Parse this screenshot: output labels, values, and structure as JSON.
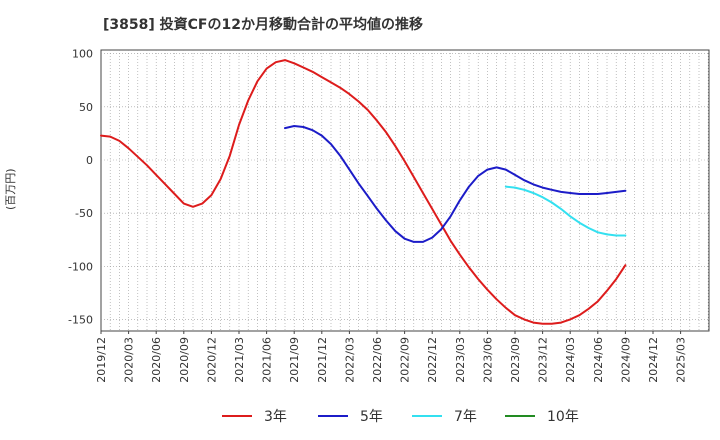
{
  "chart_data": {
    "type": "line",
    "title": "[3858]  投資CFの12か月移動合計の平均値の推移",
    "ylabel": "(百万円)",
    "xlabel": "",
    "ylim": [
      -160,
      100
    ],
    "yticks": [
      100,
      50,
      0,
      -50,
      -100,
      -150
    ],
    "xticks": [
      "2019/12",
      "2020/03",
      "2020/06",
      "2020/09",
      "2020/12",
      "2021/03",
      "2021/06",
      "2021/09",
      "2021/12",
      "2022/03",
      "2022/06",
      "2022/09",
      "2022/12",
      "2023/03",
      "2023/06",
      "2023/09",
      "2023/12",
      "2024/03",
      "2024/06",
      "2024/09",
      "2024/12",
      "2025/03"
    ],
    "grid": true,
    "legend_position": "bottom",
    "series": [
      {
        "name": "3年",
        "color": "#dd1c1c",
        "x": [
          "2019/12",
          "2020/01",
          "2020/02",
          "2020/03",
          "2020/04",
          "2020/05",
          "2020/06",
          "2020/07",
          "2020/08",
          "2020/09",
          "2020/10",
          "2020/11",
          "2020/12",
          "2021/01",
          "2021/02",
          "2021/03",
          "2021/04",
          "2021/05",
          "2021/06",
          "2021/07",
          "2021/08",
          "2021/09",
          "2021/10",
          "2021/11",
          "2021/12",
          "2022/01",
          "2022/02",
          "2022/03",
          "2022/04",
          "2022/05",
          "2022/06",
          "2022/07",
          "2022/08",
          "2022/09",
          "2022/10",
          "2022/11",
          "2022/12",
          "2023/01",
          "2023/02",
          "2023/03",
          "2023/04",
          "2023/05",
          "2023/06",
          "2023/07",
          "2023/08",
          "2023/09",
          "2023/10",
          "2023/11",
          "2023/12",
          "2024/01",
          "2024/02",
          "2024/03",
          "2024/04",
          "2024/05",
          "2024/06",
          "2024/07",
          "2024/08",
          "2024/09"
        ],
        "values": [
          23,
          22,
          18,
          11,
          3,
          -5,
          -14,
          -23,
          -32,
          -41,
          -44,
          -41,
          -33,
          -18,
          4,
          33,
          56,
          74,
          86,
          92,
          94,
          91,
          87,
          83,
          78,
          73,
          68,
          62,
          55,
          47,
          37,
          26,
          13,
          -1,
          -16,
          -31,
          -46,
          -61,
          -76,
          -89,
          -101,
          -112,
          -122,
          -131,
          -139,
          -146,
          -150,
          -153,
          -154,
          -154,
          -153,
          -150,
          -146,
          -140,
          -133,
          -123,
          -112,
          -99
        ]
      },
      {
        "name": "5年",
        "color": "#1c1cc8",
        "x": [
          "2021/08",
          "2021/09",
          "2021/10",
          "2021/11",
          "2021/12",
          "2022/01",
          "2022/02",
          "2022/03",
          "2022/04",
          "2022/05",
          "2022/06",
          "2022/07",
          "2022/08",
          "2022/09",
          "2022/10",
          "2022/11",
          "2022/12",
          "2023/01",
          "2023/02",
          "2023/03",
          "2023/04",
          "2023/05",
          "2023/06",
          "2023/07",
          "2023/08",
          "2023/09",
          "2023/10",
          "2023/11",
          "2023/12",
          "2024/01",
          "2024/02",
          "2024/03",
          "2024/04",
          "2024/05",
          "2024/06",
          "2024/07",
          "2024/08",
          "2024/09"
        ],
        "values": [
          30,
          32,
          31,
          28,
          23,
          15,
          4,
          -9,
          -22,
          -34,
          -46,
          -57,
          -67,
          -74,
          -77,
          -77,
          -73,
          -65,
          -53,
          -38,
          -25,
          -15,
          -9,
          -7,
          -9,
          -14,
          -19,
          -23,
          -26,
          -28,
          -30,
          -31,
          -32,
          -32,
          -32,
          -31,
          -30,
          -29
        ]
      },
      {
        "name": "7年",
        "color": "#33e0f0",
        "x": [
          "2023/08",
          "2023/09",
          "2023/10",
          "2023/11",
          "2023/12",
          "2024/01",
          "2024/02",
          "2024/03",
          "2024/04",
          "2024/05",
          "2024/06",
          "2024/07",
          "2024/08",
          "2024/09"
        ],
        "values": [
          -25,
          -26,
          -28,
          -31,
          -35,
          -40,
          -46,
          -53,
          -59,
          -64,
          -68,
          -70,
          -71,
          -71
        ]
      },
      {
        "name": "10年",
        "color": "#228b22",
        "x": [],
        "values": []
      }
    ]
  }
}
